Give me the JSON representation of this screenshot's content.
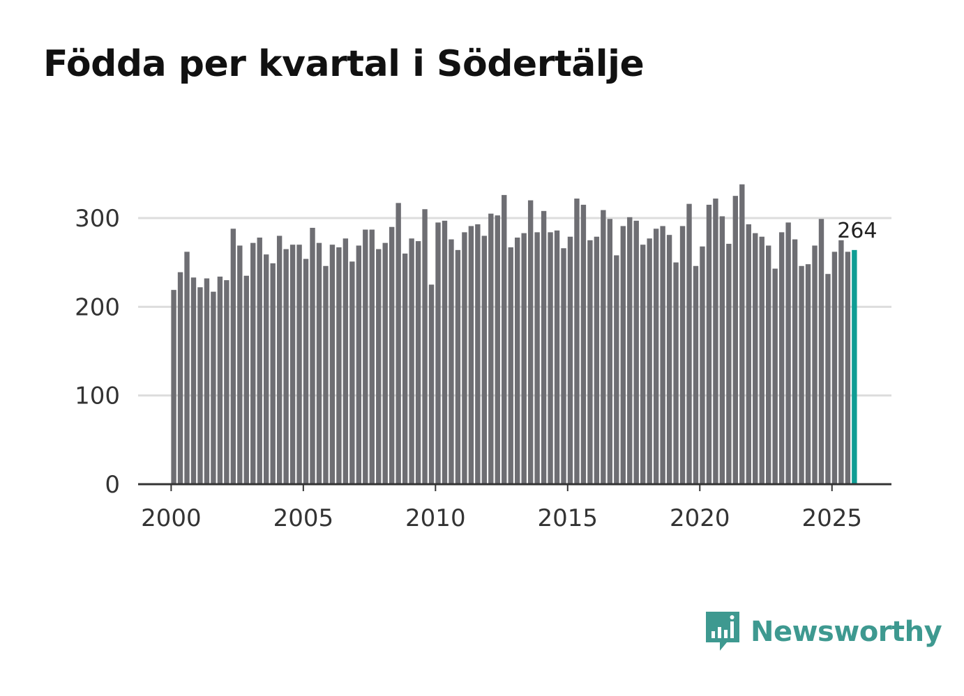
{
  "title": "Födda per kvartal i Södertälje",
  "brand": {
    "name": "Newsworthy",
    "icon": "newsworthy-logo-icon",
    "color": "#3e9990"
  },
  "colors": {
    "bar": "#6e6e73",
    "highlight": "#0f9d94",
    "grid": "#dddddd",
    "axis": "#333333"
  },
  "chart_data": {
    "type": "bar",
    "title": "Födda per kvartal i Södertälje",
    "xlabel": "",
    "ylabel": "",
    "grid": true,
    "ylim": [
      0,
      350
    ],
    "yticks": [
      0,
      100,
      200,
      300
    ],
    "xticks": [
      2000,
      2005,
      2010,
      2015,
      2020,
      2025
    ],
    "xrange": [
      1998.75,
      2027.25
    ],
    "start_year": 2000,
    "start_quarter": 1,
    "highlight_last": true,
    "last_value_label": "264",
    "values": [
      219,
      239,
      262,
      233,
      222,
      232,
      217,
      234,
      230,
      288,
      269,
      235,
      272,
      278,
      259,
      249,
      280,
      265,
      270,
      270,
      254,
      289,
      272,
      246,
      270,
      267,
      277,
      251,
      269,
      287,
      287,
      265,
      272,
      290,
      317,
      260,
      277,
      274,
      310,
      225,
      295,
      297,
      276,
      264,
      284,
      291,
      293,
      280,
      305,
      303,
      326,
      267,
      278,
      283,
      320,
      284,
      308,
      284,
      286,
      266,
      279,
      322,
      315,
      275,
      279,
      309,
      299,
      258,
      291,
      301,
      297,
      270,
      277,
      288,
      291,
      281,
      250,
      291,
      316,
      246,
      268,
      315,
      322,
      302,
      271,
      325,
      338,
      293,
      283,
      279,
      269,
      243,
      284,
      295,
      276,
      246,
      248,
      269,
      299,
      237,
      262,
      275,
      262,
      264
    ]
  }
}
